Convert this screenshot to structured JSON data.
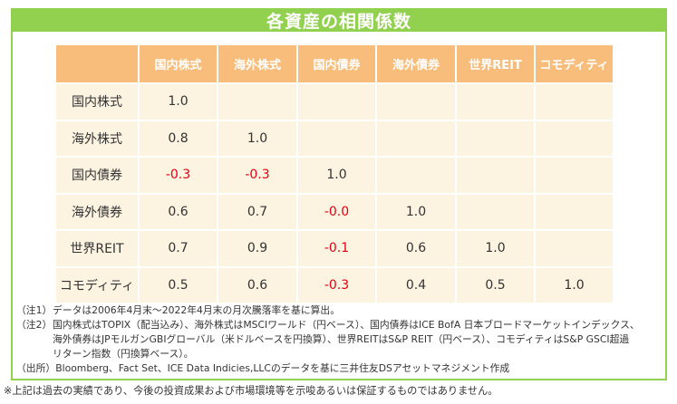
{
  "chart_data": {
    "type": "table",
    "title": "各資産の相関係数",
    "columns": [
      "国内株式",
      "海外株式",
      "国内債券",
      "海外債券",
      "世界REIT",
      "コモディティ"
    ],
    "rows": [
      {
        "label": "国内株式",
        "values": [
          "1.0",
          null,
          null,
          null,
          null,
          null
        ]
      },
      {
        "label": "海外株式",
        "values": [
          "0.8",
          "1.0",
          null,
          null,
          null,
          null
        ]
      },
      {
        "label": "国内債券",
        "values": [
          "-0.3",
          "-0.3",
          "1.0",
          null,
          null,
          null
        ]
      },
      {
        "label": "海外債券",
        "values": [
          "0.6",
          "0.7",
          "-0.0",
          "1.0",
          null,
          null
        ]
      },
      {
        "label": "世界REIT",
        "values": [
          "0.7",
          "0.9",
          "-0.1",
          "0.6",
          "1.0",
          null
        ]
      },
      {
        "label": "コモディティ",
        "values": [
          "0.5",
          "0.6",
          "-0.3",
          "0.4",
          "0.5",
          "1.0"
        ]
      }
    ]
  },
  "notes": [
    {
      "label": "（注1）",
      "lines": [
        "データは2006年4月末～2022年4月末の月次騰落率を基に算出。"
      ]
    },
    {
      "label": "（注2）",
      "lines": [
        "国内株式はTOPIX（配当込み）、海外株式はMSCIワールド（円ベース）、国内債券はICE BofA 日本ブロードマーケットインデックス、",
        "海外債券はJPモルガンGBIグローバル（米ドルベースを円換算）、世界REITはS&P REIT（円ベース）、コモディティはS&P GSCI超過",
        "リターン指数（円換算ベース）。"
      ]
    },
    {
      "label": "（出所）",
      "lines": [
        "Bloomberg、Fact Set、ICE Data Indicies,LLCのデータを基に三井住友DSアセットマネジメント作成"
      ]
    }
  ],
  "disclaimer": "※上記は過去の実績であり、今後の投資成果および市場環境等を示唆あるいは保証するものではありません。",
  "colors": {
    "frame_green": "#92d050",
    "header_orange": "#f9bd7b",
    "cell_cream": "#fdf3e1",
    "negative_red": "#e60012",
    "text": "#333333"
  }
}
